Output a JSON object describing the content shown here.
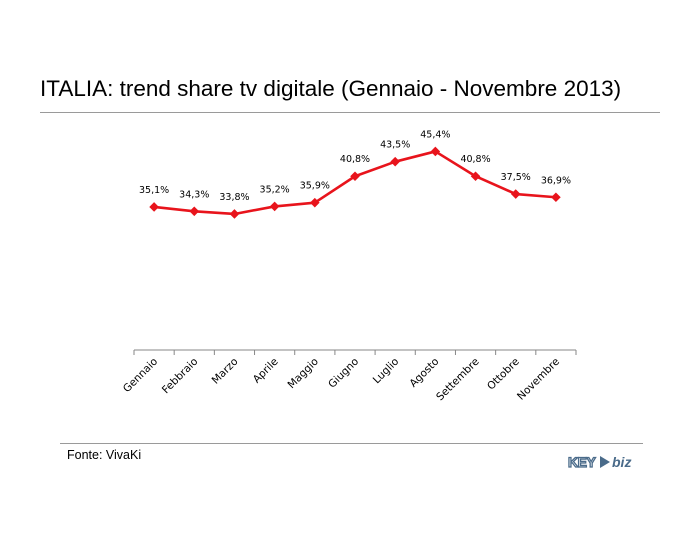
{
  "title": "ITALIA: trend share tv digitale (Gennaio - Novembre 2013)",
  "source": "Fonte: VivaKi",
  "logo": {
    "text_left": "KEY",
    "text_right": "biz"
  },
  "colors": {
    "series": "#e8141c",
    "axis": "#878787",
    "rule": "#9a9a9a"
  },
  "chart_data": {
    "type": "line",
    "title": "ITALIA: trend share tv digitale (Gennaio - Novembre 2013)",
    "categories": [
      "Gennaio",
      "Febbraio",
      "Marzo",
      "Aprile",
      "Maggio",
      "Giugno",
      "Luglio",
      "Agosto",
      "Settembre",
      "Ottobre",
      "Novembre"
    ],
    "values": [
      35.1,
      34.3,
      33.8,
      35.2,
      35.9,
      40.8,
      43.5,
      45.4,
      40.8,
      37.5,
      36.9
    ],
    "data_labels": [
      "35,1%",
      "34,3%",
      "33,8%",
      "35,2%",
      "35,9%",
      "40,8%",
      "43,5%",
      "45,4%",
      "40,8%",
      "37,5%",
      "36,9%"
    ],
    "xlabel": "",
    "ylabel": "",
    "y_axis_visible": false,
    "grid": false,
    "marker": "diamond"
  }
}
